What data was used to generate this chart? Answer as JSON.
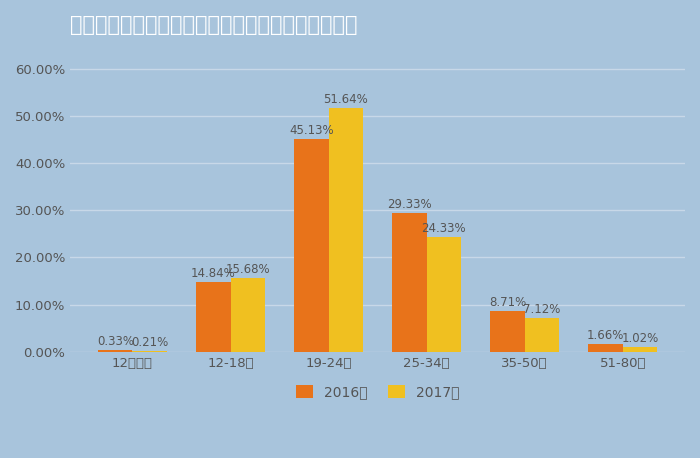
{
  "title": "国慶節日本旅行について投稿したユーザー年齢分布",
  "categories": [
    "12歳以下",
    "12-18歳",
    "19-24歳",
    "25-34歳",
    "35-50歳",
    "51-80歳"
  ],
  "values_2016": [
    0.33,
    14.84,
    45.13,
    29.33,
    8.71,
    1.66
  ],
  "values_2017": [
    0.21,
    15.68,
    51.64,
    24.33,
    7.12,
    1.02
  ],
  "labels_2016": [
    "0.33%",
    "14.84%",
    "45.13%",
    "29.33%",
    "8.71%",
    "1.66%"
  ],
  "labels_2017": [
    "0.21%",
    "15.68%",
    "51.64%",
    "24.33%",
    "7.12%",
    "1.02%"
  ],
  "color_2016": "#E8731A",
  "color_2017": "#F0C020",
  "background_color": "#A8C4DC",
  "title_color": "#FFFFFF",
  "axis_text_color": "#555555",
  "bar_label_color": "#555555",
  "yticks": [
    0,
    10,
    20,
    30,
    40,
    50,
    60
  ],
  "ytick_labels": [
    "0.00%",
    "10.00%",
    "20.00%",
    "30.00%",
    "40.00%",
    "50.00%",
    "60.00%"
  ],
  "ylim": [
    0,
    65
  ],
  "legend_2016": "2016年",
  "legend_2017": "2017年",
  "bar_width": 0.35,
  "title_fontsize": 15,
  "label_fontsize": 8.5,
  "tick_fontsize": 9.5,
  "legend_fontsize": 10,
  "grid_color": "#C8D8E8",
  "grid_linewidth": 1.0
}
